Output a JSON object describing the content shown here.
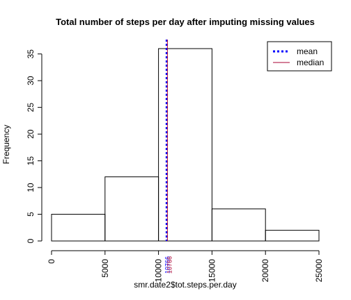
{
  "chart_data": {
    "type": "bar",
    "title": "Total number of steps per day after imputing missing values",
    "xlabel": "smr.date2$tot.steps.per.day",
    "ylabel": "Frequency",
    "xlim": [
      0,
      25000
    ],
    "ylim": [
      0,
      36
    ],
    "bins": [
      {
        "start": 0,
        "end": 5000,
        "count": 5
      },
      {
        "start": 5000,
        "end": 10000,
        "count": 12
      },
      {
        "start": 10000,
        "end": 15000,
        "count": 36
      },
      {
        "start": 15000,
        "end": 20000,
        "count": 6
      },
      {
        "start": 20000,
        "end": 25000,
        "count": 2
      }
    ],
    "x_ticks": [
      "0",
      "5000",
      "10000",
      "15000",
      "20000",
      "25000"
    ],
    "x_tick_values": [
      0,
      5000,
      10000,
      15000,
      20000,
      25000
    ],
    "y_ticks": [
      "0",
      "5",
      "10",
      "15",
      "20",
      "25",
      "30",
      "35"
    ],
    "y_tick_values": [
      0,
      5,
      10,
      15,
      20,
      25,
      30,
      35
    ],
    "lines": [
      {
        "name": "mean",
        "value": 10766,
        "color": "#0000ff",
        "style": "dotted",
        "label": "10766"
      },
      {
        "name": "median",
        "value": 10766,
        "color": "#aa0033",
        "style": "solid",
        "label": "10766"
      }
    ],
    "legend": {
      "position": "top-right",
      "entries": [
        {
          "label": "mean",
          "color": "#0000ff",
          "style": "dotted"
        },
        {
          "label": "median",
          "color": "#aa0033",
          "style": "solid"
        }
      ]
    },
    "grid": false
  }
}
